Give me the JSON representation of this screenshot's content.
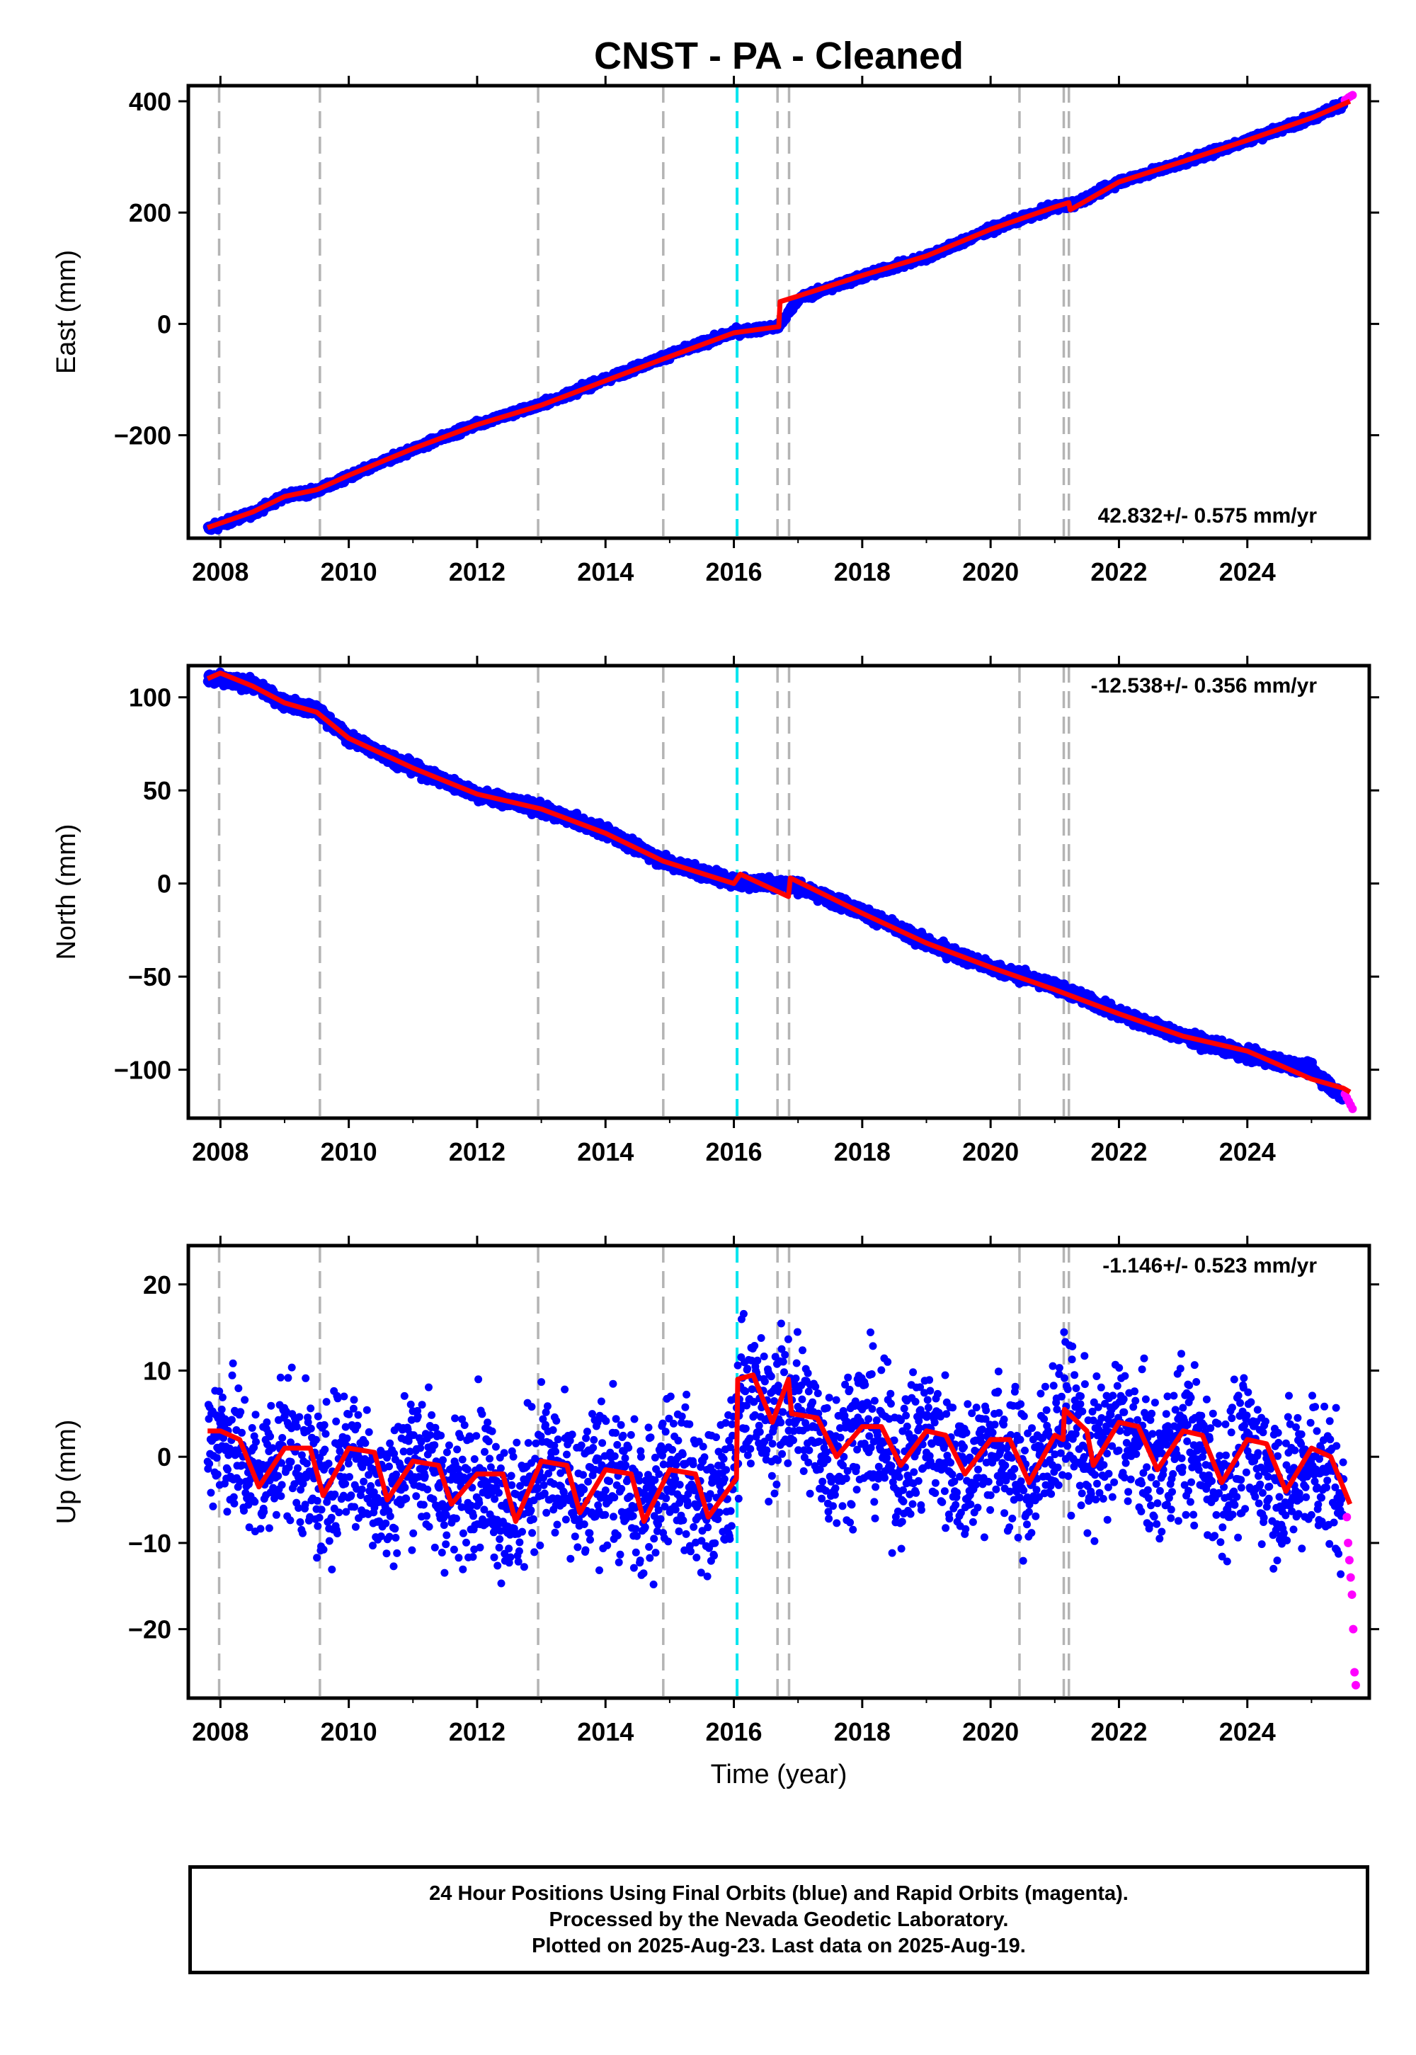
{
  "title": "CNST  - PA - Cleaned",
  "xlabel": "Time (year)",
  "x_ticks": [
    "2008",
    "2010",
    "2012",
    "2014",
    "2016",
    "2018",
    "2020",
    "2022",
    "2024"
  ],
  "colors": {
    "final": "#0000ff",
    "rapid": "#ff00ff",
    "model": "#ff0000",
    "event": "#b4b4b4",
    "equipment": "#00e5ee"
  },
  "caption": [
    "24 Hour Positions Using Final Orbits (blue) and Rapid Orbits (magenta).",
    "Processed by the Nevada Geodetic Laboratory.",
    "Plotted on 2025-Aug-23. Last data on 2025-Aug-19."
  ],
  "chart_data": [
    {
      "type": "scatter",
      "ylabel": "East (mm)",
      "xlim": [
        2007.5,
        2025.9
      ],
      "ylim": [
        -385,
        428
      ],
      "y_ticks": [
        -200,
        0,
        200,
        400
      ],
      "rate_label": "42.832+/- 0.575 mm/yr",
      "rate_position": "bottom-right",
      "event_lines": [
        2007.98,
        2009.55,
        2012.95,
        2014.9,
        2016.68,
        2016.86,
        2020.45,
        2021.14,
        2021.22
      ],
      "equipment_lines": [
        2016.05
      ],
      "series": [
        {
          "name": "final",
          "style": "points",
          "x": [
            2007.8,
            2008.5,
            2009.0,
            2009.5,
            2010.0,
            2011.0,
            2012.0,
            2013.0,
            2014.0,
            2014.9,
            2016.0,
            2016.7,
            2017.0,
            2018.0,
            2019.0,
            2020.0,
            2021.0,
            2021.3,
            2022.0,
            2023.0,
            2024.0,
            2025.0,
            2025.5
          ],
          "y": [
            -368,
            -340,
            -310,
            -300,
            -275,
            -225,
            -180,
            -145,
            -100,
            -60,
            -15,
            -5,
            45,
            85,
            120,
            170,
            210,
            215,
            255,
            290,
            330,
            370,
            395
          ]
        },
        {
          "name": "rapid",
          "style": "points",
          "x": [
            2025.52,
            2025.55,
            2025.58,
            2025.61,
            2025.64
          ],
          "y": [
            402,
            404,
            407,
            409,
            411
          ]
        },
        {
          "name": "model",
          "style": "line",
          "x": [
            2007.8,
            2008.5,
            2009.0,
            2009.5,
            2010.0,
            2011.0,
            2012.0,
            2013.0,
            2014.0,
            2014.9,
            2016.0,
            2016.7,
            2016.72,
            2017.0,
            2018.0,
            2019.0,
            2020.0,
            2021.0,
            2021.22,
            2021.24,
            2022.0,
            2023.0,
            2024.0,
            2025.0,
            2025.6
          ],
          "y": [
            -366,
            -338,
            -310,
            -298,
            -272,
            -224,
            -181,
            -146,
            -102,
            -63,
            -16,
            -5,
            40,
            50,
            87,
            122,
            170,
            210,
            218,
            205,
            255,
            292,
            330,
            370,
            400
          ]
        }
      ]
    },
    {
      "type": "scatter",
      "ylabel": "North (mm)",
      "xlim": [
        2007.5,
        2025.9
      ],
      "ylim": [
        -126,
        117
      ],
      "y_ticks": [
        -100,
        -50,
        0,
        50,
        100
      ],
      "rate_label": "-12.538+/- 0.356 mm/yr",
      "rate_position": "top-right",
      "event_lines": [
        2007.98,
        2009.55,
        2012.95,
        2014.9,
        2016.68,
        2016.86,
        2020.45,
        2021.14,
        2021.22
      ],
      "equipment_lines": [
        2016.05
      ],
      "series": [
        {
          "name": "final",
          "style": "points",
          "x": [
            2007.8,
            2008.5,
            2009.0,
            2009.5,
            2010.0,
            2011.0,
            2012.0,
            2013.0,
            2014.0,
            2014.9,
            2016.0,
            2016.8,
            2017.0,
            2018.0,
            2019.0,
            2020.0,
            2021.0,
            2022.0,
            2023.0,
            2024.0,
            2025.0,
            2025.5
          ],
          "y": [
            110,
            107,
            97,
            93,
            78,
            62,
            48,
            40,
            28,
            12,
            1,
            0,
            -2,
            -15,
            -32,
            -45,
            -55,
            -70,
            -82,
            -92,
            -100,
            -115
          ]
        },
        {
          "name": "rapid",
          "style": "points",
          "x": [
            2025.52,
            2025.55,
            2025.58,
            2025.61,
            2025.64
          ],
          "y": [
            -113,
            -115,
            -117,
            -119,
            -121
          ]
        },
        {
          "name": "model",
          "style": "line",
          "x": [
            2007.8,
            2008.0,
            2008.5,
            2009.0,
            2009.5,
            2010.0,
            2011.0,
            2012.0,
            2013.0,
            2014.0,
            2014.9,
            2016.0,
            2016.1,
            2016.85,
            2016.88,
            2018.0,
            2019.0,
            2020.0,
            2021.0,
            2022.0,
            2023.0,
            2024.0,
            2025.0,
            2025.5,
            2025.6
          ],
          "y": [
            110,
            113,
            106,
            97,
            92,
            78,
            62,
            48,
            40,
            27,
            12,
            0,
            5,
            -7,
            3,
            -16,
            -32,
            -45,
            -57,
            -70,
            -82,
            -90,
            -105,
            -110,
            -112
          ]
        }
      ]
    },
    {
      "type": "scatter",
      "ylabel": "Up (mm)",
      "xlim": [
        2007.5,
        2025.9
      ],
      "ylim": [
        -28,
        24.5
      ],
      "y_ticks": [
        -20,
        -10,
        0,
        10,
        20
      ],
      "rate_label": "-1.146+/- 0.523 mm/yr",
      "rate_position": "top-right",
      "event_lines": [
        2007.98,
        2009.55,
        2012.95,
        2014.9,
        2016.68,
        2016.86,
        2020.45,
        2021.14,
        2021.22
      ],
      "equipment_lines": [
        2016.05
      ],
      "series": [
        {
          "name": "final",
          "style": "points",
          "x": [
            2007.8,
            2008.0,
            2008.6,
            2009.0,
            2009.6,
            2010.0,
            2010.6,
            2011.0,
            2011.6,
            2012.0,
            2012.6,
            2013.0,
            2013.6,
            2014.0,
            2014.6,
            2015.0,
            2015.6,
            2016.0,
            2016.1,
            2016.5,
            2016.9,
            2017.5,
            2018.0,
            2018.6,
            2019.0,
            2019.6,
            2020.0,
            2020.6,
            2021.0,
            2021.2,
            2021.6,
            2022.0,
            2022.6,
            2023.0,
            2023.6,
            2024.0,
            2024.6,
            2025.0,
            2025.5
          ],
          "y": [
            2,
            3,
            -3,
            2,
            -4,
            1,
            -5,
            1,
            -5,
            -1,
            -7,
            0,
            -6,
            -1,
            -7,
            0,
            -6,
            -2,
            9,
            4,
            7,
            0,
            4,
            -1,
            3,
            -2,
            2,
            -3,
            3,
            5,
            -1,
            4,
            -2,
            3,
            -3,
            1,
            -4,
            0,
            -5
          ]
        },
        {
          "name": "rapid",
          "style": "points",
          "x": [
            2025.55,
            2025.57,
            2025.59,
            2025.61,
            2025.63,
            2025.65,
            2025.67,
            2025.69
          ],
          "y": [
            -7,
            -10,
            -12,
            -14,
            -16,
            -20,
            -25,
            -26.5
          ]
        },
        {
          "name": "model",
          "style": "line",
          "x": [
            2007.8,
            2008.0,
            2008.3,
            2008.6,
            2009.0,
            2009.4,
            2009.6,
            2010.0,
            2010.4,
            2010.6,
            2011.0,
            2011.4,
            2011.6,
            2012.0,
            2012.4,
            2012.6,
            2013.0,
            2013.4,
            2013.6,
            2014.0,
            2014.4,
            2014.6,
            2015.0,
            2015.4,
            2015.6,
            2016.04,
            2016.06,
            2016.3,
            2016.6,
            2016.85,
            2016.9,
            2017.3,
            2017.6,
            2018.0,
            2018.3,
            2018.6,
            2019.0,
            2019.3,
            2019.6,
            2020.0,
            2020.3,
            2020.6,
            2021.0,
            2021.13,
            2021.15,
            2021.5,
            2021.6,
            2022.0,
            2022.3,
            2022.6,
            2023.0,
            2023.3,
            2023.6,
            2024.0,
            2024.3,
            2024.6,
            2025.0,
            2025.3,
            2025.6
          ],
          "y": [
            3,
            3,
            2,
            -3.5,
            1,
            1,
            -4.5,
            1,
            0.5,
            -5,
            -0.5,
            -1,
            -5.5,
            -2,
            -2,
            -7.5,
            -0.5,
            -1,
            -6.5,
            -1.5,
            -2,
            -7.5,
            -1.5,
            -2,
            -7,
            -2.5,
            9,
            9.5,
            4,
            9,
            5,
            4.5,
            0,
            3.5,
            3.5,
            -1,
            3,
            2.5,
            -2,
            2,
            2,
            -3,
            2.5,
            2,
            5.5,
            3,
            -1,
            4,
            3.5,
            -1.5,
            3,
            2.5,
            -3,
            2,
            1.5,
            -4,
            1,
            0,
            -5.5
          ]
        }
      ]
    }
  ]
}
